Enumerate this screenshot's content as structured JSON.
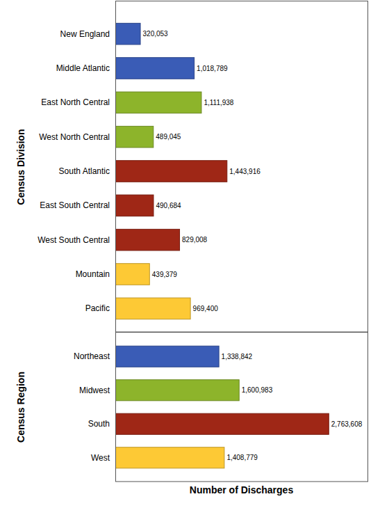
{
  "chart_data": [
    {
      "type": "bar",
      "orientation": "horizontal",
      "y_label": "Census Division",
      "categories": [
        "New England",
        "Middle Atlantic",
        "East North Central",
        "West North Central",
        "South Atlantic",
        "East South Central",
        "West South Central",
        "Mountain",
        "Pacific"
      ],
      "values": [
        320053,
        1018789,
        1111938,
        489045,
        1443916,
        490684,
        829008,
        439379,
        969400
      ],
      "value_labels": [
        "320,053",
        "1,018,789",
        "1,111,938",
        "489,045",
        "1,443,916",
        "490,684",
        "829,008",
        "439,379",
        "969,400"
      ],
      "colors": [
        "#3a5cb6",
        "#3a5cb6",
        "#8db42b",
        "#8db42b",
        "#9f2716",
        "#9f2716",
        "#9f2716",
        "#fdc935",
        "#fdc935"
      ],
      "xlim": [
        0,
        3270000
      ],
      "tick_labels": false,
      "data_labels": true
    },
    {
      "type": "bar",
      "orientation": "horizontal",
      "y_label": "Census Region",
      "x_label": "Number of Discharges",
      "categories": [
        "Northeast",
        "Midwest",
        "South",
        "West"
      ],
      "values": [
        1338842,
        1600983,
        2763608,
        1408779
      ],
      "value_labels": [
        "1,338,842",
        "1,600,983",
        "2,763,608",
        "1,408,779"
      ],
      "colors": [
        "#3a5cb6",
        "#8db42b",
        "#9f2716",
        "#fdc935"
      ],
      "xlim": [
        0,
        3270000
      ],
      "tick_labels": false,
      "data_labels": true
    }
  ]
}
